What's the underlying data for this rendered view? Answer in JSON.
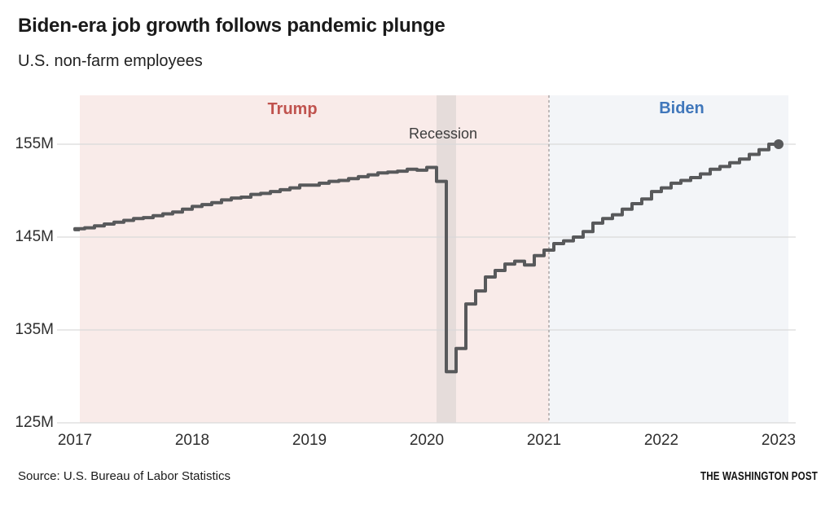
{
  "header": {
    "title": "Biden-era job growth follows pandemic plunge",
    "subtitle": "U.S. non-farm employees"
  },
  "footer": {
    "source": "Source: U.S. Bureau of Labor Statistics",
    "credit": "THE WASHINGTON POST"
  },
  "chart_data": {
    "type": "line",
    "line_style": "step",
    "title": "Biden-era job growth follows pandemic plunge",
    "subtitle": "U.S. non-farm employees",
    "unit": "millions of employees",
    "grid": true,
    "grid_color": "#d9d9d9",
    "series": [
      {
        "name": "U.S. non-farm employees",
        "color": "#58595b",
        "start_month": "2017-01",
        "end_month": "2023-01",
        "end_dot": true,
        "values": [
          145.8,
          145.9,
          146.0,
          146.2,
          146.4,
          146.6,
          146.8,
          147.0,
          147.1,
          147.3,
          147.5,
          147.7,
          148.0,
          148.3,
          148.5,
          148.7,
          149.0,
          149.2,
          149.3,
          149.6,
          149.7,
          149.9,
          150.1,
          150.3,
          150.6,
          150.6,
          150.8,
          151.0,
          151.1,
          151.3,
          151.5,
          151.7,
          151.9,
          152.0,
          152.1,
          152.3,
          152.2,
          152.5,
          151.0,
          130.5,
          133.0,
          137.8,
          139.2,
          140.7,
          141.4,
          142.1,
          142.4,
          142.0,
          143.0,
          143.6,
          144.3,
          144.6,
          145.0,
          145.6,
          146.5,
          147.0,
          147.4,
          148.0,
          148.6,
          149.1,
          149.9,
          150.3,
          150.8,
          151.1,
          151.4,
          151.8,
          152.3,
          152.6,
          153.0,
          153.4,
          153.9,
          154.4,
          155.0
        ]
      }
    ],
    "y_axis": {
      "ticks": [
        {
          "label": "125M",
          "value": 125
        },
        {
          "label": "135M",
          "value": 135
        },
        {
          "label": "145M",
          "value": 145
        },
        {
          "label": "155M",
          "value": 155
        }
      ],
      "range": [
        125,
        160
      ]
    },
    "x_axis": {
      "ticks": [
        {
          "label": "2017",
          "month": "2017-01"
        },
        {
          "label": "2018",
          "month": "2018-01"
        },
        {
          "label": "2019",
          "month": "2019-01"
        },
        {
          "label": "2020",
          "month": "2020-01"
        },
        {
          "label": "2021",
          "month": "2021-01"
        },
        {
          "label": "2022",
          "month": "2022-01"
        },
        {
          "label": "2023",
          "month": "2023-01"
        }
      ]
    },
    "regions": [
      {
        "id": "trump",
        "label": "Trump",
        "start": "2017-01",
        "end": "2021-01",
        "fill": "#f9ebe9",
        "label_color": "#c0534e"
      },
      {
        "id": "biden",
        "label": "Biden",
        "start": "2021-01",
        "end": "2023-02",
        "fill": "#f3f5f8",
        "label_color": "#4077bb"
      }
    ],
    "recession_band": {
      "label": "Recession",
      "start": "2020-02",
      "end": "2020-04",
      "fill": "#e5dcda",
      "label_color": "#3c3c3c"
    },
    "divider": {
      "month": "2021-01",
      "style": "dashed",
      "color": "#a8a2a2"
    }
  }
}
